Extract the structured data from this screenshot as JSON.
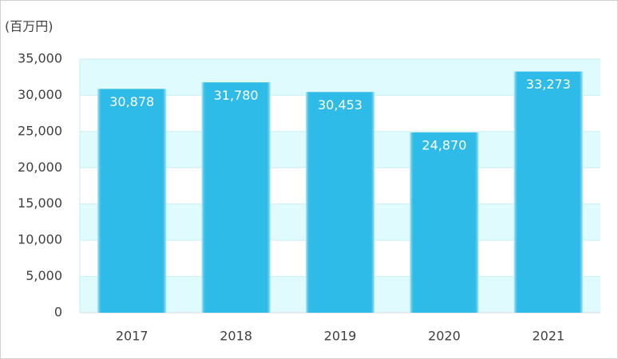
{
  "chart_data": {
    "type": "bar",
    "unit_label": "(百万円)",
    "categories": [
      "2017",
      "2018",
      "2019",
      "2020",
      "2021"
    ],
    "values": [
      30878,
      31780,
      30453,
      24870,
      33273
    ],
    "value_labels": [
      "30,878",
      "31,780",
      "30,453",
      "24,870",
      "33,273"
    ],
    "color": "#2fbbe8",
    "ylim": [
      0,
      35000
    ],
    "yticks": [
      0,
      {
        "value": 5000,
        "label": "5,000"
      },
      {
        "value": 10000,
        "label": "10,000"
      },
      {
        "value": 15000,
        "label": "15,000"
      },
      {
        "value": 20000,
        "label": "20,000"
      },
      {
        "value": 25000,
        "label": "25,000"
      },
      {
        "value": 30000,
        "label": "30,000"
      },
      {
        "value": 35000,
        "label": "35,000"
      }
    ],
    "grid": true
  }
}
